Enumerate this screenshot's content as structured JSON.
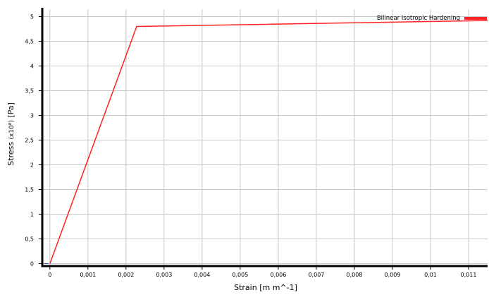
{
  "chart_data": {
    "type": "line",
    "title": "",
    "xlabel": "Strain [m m^-1]",
    "ylabel": "Stress (x10⁸) [Pa]",
    "ylabel_parts": {
      "prefix": "Stress ",
      "multiplier": "(x10⁸)",
      "unit": " [Pa]"
    },
    "xlim": [
      -0.0002,
      0.0115
    ],
    "ylim": [
      -0.05,
      5.15
    ],
    "x_ticks": [
      0,
      0.001,
      0.002,
      0.003,
      0.004,
      0.005,
      0.006,
      0.007,
      0.008,
      0.009,
      0.01,
      0.011
    ],
    "x_tick_labels": [
      "0",
      "0,001",
      "0,002",
      "0,003",
      "0,004",
      "0,005",
      "0,006",
      "0,007",
      "0,008",
      "0,009",
      "0,01",
      "0,011"
    ],
    "y_ticks": [
      0,
      0.5,
      1,
      1.5,
      2,
      2.5,
      3,
      3.5,
      4,
      4.5,
      5
    ],
    "y_tick_labels": [
      "0",
      "0,5",
      "1",
      "1,5",
      "2",
      "2,5",
      "3",
      "3,5",
      "4",
      "4,5",
      "5"
    ],
    "grid": true,
    "legend_position": "top-right",
    "series": [
      {
        "name": "Bilinear Isotropic Hardening",
        "color": "#ff2222",
        "x": [
          0,
          0.00228,
          0.0115
        ],
        "y": [
          0,
          4.8,
          4.92
        ]
      }
    ]
  }
}
